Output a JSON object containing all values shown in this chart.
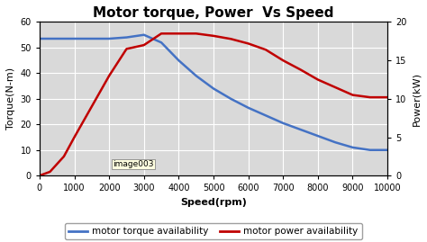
{
  "title": "Motor torque, Power  Vs Speed",
  "xlabel": "Speed(rpm)",
  "ylabel_left": "Torque(N-m)",
  "ylabel_right": "Power(kW)",
  "xlim": [
    0,
    10000
  ],
  "ylim_left": [
    0,
    60
  ],
  "ylim_right": [
    0,
    20
  ],
  "xticks": [
    0,
    1000,
    2000,
    3000,
    4000,
    5000,
    6000,
    7000,
    8000,
    9000,
    10000
  ],
  "yticks_left": [
    0,
    10,
    20,
    30,
    40,
    50,
    60
  ],
  "yticks_right": [
    0,
    5,
    10,
    15,
    20
  ],
  "torque_speed": [
    0,
    500,
    1000,
    1500,
    2000,
    2500,
    3000,
    3500,
    4000,
    4500,
    5000,
    5500,
    6000,
    6500,
    7000,
    7500,
    8000,
    8500,
    9000,
    9500,
    10000
  ],
  "torque_values": [
    53.5,
    53.5,
    53.5,
    53.5,
    53.5,
    54.0,
    55.0,
    52.0,
    45.0,
    39.0,
    34.0,
    30.0,
    26.5,
    23.5,
    20.5,
    18.0,
    15.5,
    13.0,
    11.0,
    10.0,
    10.0
  ],
  "power_speed": [
    0,
    300,
    700,
    1000,
    1500,
    2000,
    2500,
    3000,
    3500,
    4000,
    4500,
    5000,
    5500,
    6000,
    6500,
    7000,
    7500,
    8000,
    8500,
    9000,
    9500,
    10000
  ],
  "power_values": [
    0,
    0.5,
    2.5,
    5.0,
    9.0,
    13.0,
    16.5,
    17.0,
    18.5,
    18.5,
    18.5,
    18.2,
    17.8,
    17.2,
    16.4,
    15.0,
    13.8,
    12.5,
    11.5,
    10.5,
    10.2,
    10.2
  ],
  "torque_color": "#4472C4",
  "power_color": "#C00000",
  "legend_torque": "motor torque availability",
  "legend_power": "motor power availability",
  "plot_bg_color": "#d9d9d9",
  "fig_bg_color": "#ffffff",
  "grid_color": "#ffffff",
  "watermark": "image003",
  "title_fontsize": 11,
  "label_fontsize": 8,
  "tick_fontsize": 7,
  "legend_fontsize": 7.5
}
